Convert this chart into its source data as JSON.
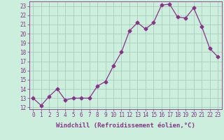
{
  "x": [
    0,
    1,
    2,
    3,
    4,
    5,
    6,
    7,
    8,
    9,
    10,
    11,
    12,
    13,
    14,
    15,
    16,
    17,
    18,
    19,
    20,
    21,
    22,
    23
  ],
  "y": [
    13.0,
    12.2,
    13.2,
    14.0,
    12.8,
    13.0,
    13.0,
    13.0,
    14.3,
    14.8,
    16.5,
    18.0,
    20.3,
    21.2,
    20.5,
    21.2,
    23.1,
    23.2,
    21.8,
    21.7,
    22.8,
    20.8,
    18.4,
    17.5
  ],
  "line_color": "#883388",
  "marker": "D",
  "marker_size": 2.5,
  "bg_color": "#cceedd",
  "grid_color": "#aaccbb",
  "xlabel": "Windchill (Refroidissement éolien,°C)",
  "xlim": [
    -0.5,
    23.5
  ],
  "ylim": [
    11.8,
    23.5
  ],
  "yticks": [
    12,
    13,
    14,
    15,
    16,
    17,
    18,
    19,
    20,
    21,
    22,
    23
  ],
  "xticks": [
    0,
    1,
    2,
    3,
    4,
    5,
    6,
    7,
    8,
    9,
    10,
    11,
    12,
    13,
    14,
    15,
    16,
    17,
    18,
    19,
    20,
    21,
    22,
    23
  ],
  "tick_fontsize": 5.5,
  "xlabel_fontsize": 6.5,
  "label_color": "#883388",
  "spine_color": "#883388",
  "linewidth": 0.9
}
